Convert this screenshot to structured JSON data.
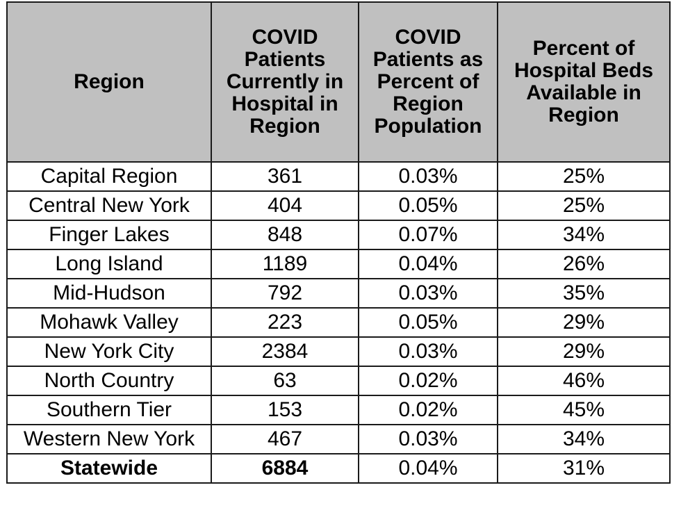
{
  "chart_data": {
    "type": "table",
    "columns": [
      "Region",
      "COVID Patients Currently in Hospital in Region",
      "COVID Patients as Percent of Region Population",
      "Percent of Hospital Beds Available in Region"
    ],
    "rows": [
      [
        "Capital Region",
        "361",
        "0.03%",
        "25%"
      ],
      [
        "Central New York",
        "404",
        "0.05%",
        "25%"
      ],
      [
        "Finger Lakes",
        "848",
        "0.07%",
        "34%"
      ],
      [
        "Long Island",
        "1189",
        "0.04%",
        "26%"
      ],
      [
        "Mid-Hudson",
        "792",
        "0.03%",
        "35%"
      ],
      [
        "Mohawk Valley",
        "223",
        "0.05%",
        "29%"
      ],
      [
        "New York City",
        "2384",
        "0.03%",
        "29%"
      ],
      [
        "North Country",
        "63",
        "0.02%",
        "46%"
      ],
      [
        "Southern Tier",
        "153",
        "0.02%",
        "45%"
      ],
      [
        "Western New York",
        "467",
        "0.03%",
        "34%"
      ]
    ],
    "total": [
      "Statewide",
      "6884",
      "0.04%",
      "31%"
    ],
    "colors": {
      "header_background": "#c0c0c0",
      "cell_background": "#ffffff",
      "border": "#1a1a1a"
    }
  }
}
